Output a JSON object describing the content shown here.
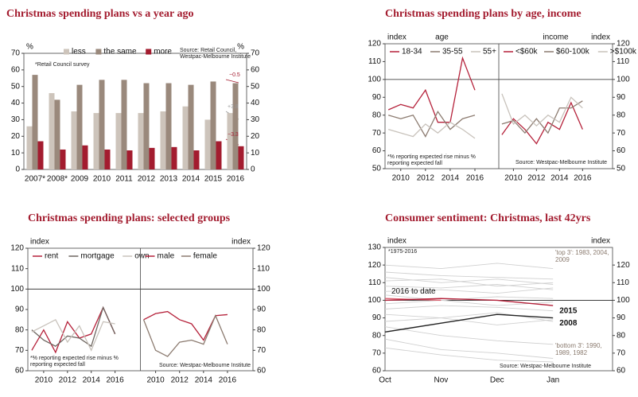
{
  "chart_data": [
    {
      "type": "bar",
      "title": "Christmas spending plans vs a year ago",
      "y_label": "%",
      "y2_label": "%",
      "categories": [
        "2007*",
        "2008*",
        "2009",
        "2010",
        "2011",
        "2012",
        "2013",
        "2014",
        "2015",
        "2016"
      ],
      "series": [
        {
          "name": "less",
          "color": "#cdc4bb",
          "values": [
            26,
            46,
            35,
            34,
            34,
            34,
            35,
            38,
            30,
            34
          ]
        },
        {
          "name": "the same",
          "color": "#9a897c",
          "values": [
            57,
            42,
            51,
            54,
            54,
            52,
            52,
            51,
            53,
            52
          ]
        },
        {
          "name": "more",
          "color": "#a31c2f",
          "values": [
            17,
            12,
            14.5,
            12,
            11.5,
            13,
            13.5,
            11.5,
            17,
            14
          ]
        }
      ],
      "ylim": [
        0,
        70
      ],
      "yticks": [
        0,
        10,
        20,
        30,
        40,
        50,
        60,
        70
      ],
      "y2lim": [
        0,
        70
      ],
      "y2ticks": [
        0,
        10,
        20,
        30,
        40,
        50,
        60,
        70
      ],
      "annotations": [
        "Source: Retail Council, Westpac-Melbourne Institute",
        "*Retail Council survey",
        "−0.5",
        "+3.8",
        "−3.3"
      ]
    },
    {
      "type": "panel-line",
      "title": "Christmas spending plans by age, income",
      "y_label": "index",
      "y2_label": "index",
      "ylim": [
        50,
        120
      ],
      "yticks": [
        50,
        60,
        70,
        80,
        90,
        100,
        110,
        120
      ],
      "y2lim": [
        50,
        120
      ],
      "y2ticks": [
        50,
        60,
        70,
        80,
        90,
        100,
        110,
        120
      ],
      "hline": 100,
      "xticks": [
        2010,
        2012,
        2014,
        2016
      ],
      "panels": [
        {
          "label": "age",
          "xlim": [
            2008.73,
            2017.93
          ],
          "x": [
            2009,
            2010,
            2011,
            2012,
            2013,
            2014,
            2015,
            2016
          ],
          "series": [
            {
              "name": "18-34",
              "color": "#b5213a",
              "values": [
                83,
                86,
                84,
                94,
                76,
                76,
                112,
                94
              ]
            },
            {
              "name": "35-55",
              "color": "#8c7b70",
              "values": [
                80,
                78,
                80,
                68,
                82,
                72,
                78,
                80
              ]
            },
            {
              "name": "55+",
              "color": "#c8c2bb",
              "values": [
                72,
                70,
                68,
                75,
                70,
                76,
                72,
                67
              ]
            }
          ]
        },
        {
          "label": "income",
          "xlim": [
            2008.73,
            2018.6
          ],
          "x": [
            2009,
            2010,
            2011,
            2012,
            2013,
            2014,
            2015,
            2016
          ],
          "series": [
            {
              "name": "<$60k",
              "color": "#b5213a",
              "values": [
                69,
                78,
                72,
                64,
                76,
                72,
                87,
                72
              ]
            },
            {
              "name": "$60-100k",
              "color": "#8c7b70",
              "values": [
                75,
                77,
                70,
                78,
                70,
                84,
                84,
                88
              ]
            },
            {
              "name": ">$100k",
              "color": "#c8c2bb",
              "values": [
                92,
                75,
                80,
                74,
                80,
                76,
                90,
                84
              ]
            }
          ]
        }
      ],
      "annotations": [
        "*% reporting expected rise minus % reporting expected fall",
        "Source: Westpac-Melbourne Institute"
      ]
    },
    {
      "type": "panel-line",
      "title": "Christmas spending plans: selected groups",
      "y_label": "index",
      "y2_label": "index",
      "ylim": [
        60,
        120
      ],
      "yticks": [
        60,
        70,
        80,
        90,
        100,
        110,
        120
      ],
      "y2lim": [
        60,
        120
      ],
      "y2ticks": [
        60,
        70,
        80,
        90,
        100,
        110,
        120
      ],
      "hline": 100,
      "xticks": [
        2010,
        2012,
        2014,
        2016
      ],
      "panels": [
        {
          "xlim": [
            2008.67,
            2018.13
          ],
          "x": [
            2009,
            2010,
            2011,
            2012,
            2013,
            2014,
            2015,
            2016
          ],
          "series": [
            {
              "name": "rent",
              "color": "#b5213a",
              "values": [
                70,
                80,
                69,
                84,
                76,
                78,
                91,
                78
              ]
            },
            {
              "name": "mortgage",
              "color": "#6e6660",
              "values": [
                80,
                75,
                72,
                77,
                76,
                72,
                91,
                78
              ]
            },
            {
              "name": "own",
              "color": "#c8c2bb",
              "values": [
                79,
                82,
                85,
                74,
                82,
                70,
                84,
                83
              ]
            }
          ]
        },
        {
          "xlim": [
            2008.73,
            2018.13
          ],
          "x": [
            2009,
            2010,
            2011,
            2012,
            2013,
            2014,
            2015,
            2016
          ],
          "series": [
            {
              "name": "male",
              "color": "#b5213a",
              "values": [
                85,
                88,
                89,
                85,
                83,
                75,
                87,
                87.5
              ]
            },
            {
              "name": "female",
              "color": "#8c7b70",
              "values": [
                85,
                70,
                67,
                74,
                75,
                73,
                87,
                73
              ]
            }
          ]
        }
      ],
      "annotations": [
        "*% reporting expected rise minus % reporting expected fall",
        "Source: Westpac-Melbourne Institute"
      ]
    },
    {
      "type": "line",
      "title": "Consumer sentiment: Christmas, last 42yrs",
      "y_label": "index",
      "y2_label": "index",
      "categories": [
        "Oct",
        "Nov",
        "Dec",
        "Jan"
      ],
      "ylim": [
        60,
        130
      ],
      "yticks": [
        60,
        70,
        80,
        90,
        100,
        110,
        120,
        130
      ],
      "y2lim": [
        60,
        130
      ],
      "y2ticks": [
        60,
        70,
        80,
        90,
        100,
        110,
        120
      ],
      "hline": 100,
      "series": [
        {
          "color": "#d0d0d0",
          "values": [
            120,
            118,
            121,
            118
          ]
        },
        {
          "color": "#d0d0d0",
          "values": [
            116,
            114,
            113,
            112
          ]
        },
        {
          "color": "#d0d0d0",
          "values": [
            113,
            110,
            112,
            109
          ]
        },
        {
          "color": "#d0d0d0",
          "values": [
            111,
            112,
            108,
            110
          ]
        },
        {
          "color": "#d0d0d0",
          "values": [
            108,
            107,
            109,
            106
          ]
        },
        {
          "color": "#d0d0d0",
          "values": [
            105,
            106,
            104,
            107
          ]
        },
        {
          "color": "#d0d0d0",
          "values": [
            103,
            100,
            102,
            101
          ]
        },
        {
          "color": "#d0d0d0",
          "values": [
            98,
            100,
            97,
            99
          ]
        },
        {
          "color": "#d0d0d0",
          "values": [
            95,
            97,
            96,
            94
          ]
        },
        {
          "color": "#d0d0d0",
          "values": [
            92,
            90,
            93,
            88
          ]
        },
        {
          "color": "#d0d0d0",
          "values": [
            88,
            90,
            86,
            89
          ]
        },
        {
          "color": "#d0d0d0",
          "values": [
            85,
            80,
            77,
            75
          ]
        },
        {
          "color": "#d0d0d0",
          "values": [
            78,
            72,
            70,
            67
          ]
        },
        {
          "color": "#d0d0d0",
          "values": [
            73,
            69,
            66,
            65
          ]
        },
        {
          "name": "2008",
          "color": "#222222",
          "values": [
            82,
            87,
            92,
            90
          ]
        },
        {
          "name": "2016 to date",
          "color": "#d9606f",
          "values": [
            101,
            100,
            null,
            null
          ]
        },
        {
          "name": "2015",
          "color": "#b5213a",
          "values": [
            100,
            101,
            100,
            97
          ]
        }
      ],
      "annotations": [
        "*1975-2016",
        "'top 3': 1983, 2004, 2009",
        "'bottom 3': 1990, 1989, 1982",
        "Source: Westpac-Melbourne Institute"
      ]
    }
  ]
}
